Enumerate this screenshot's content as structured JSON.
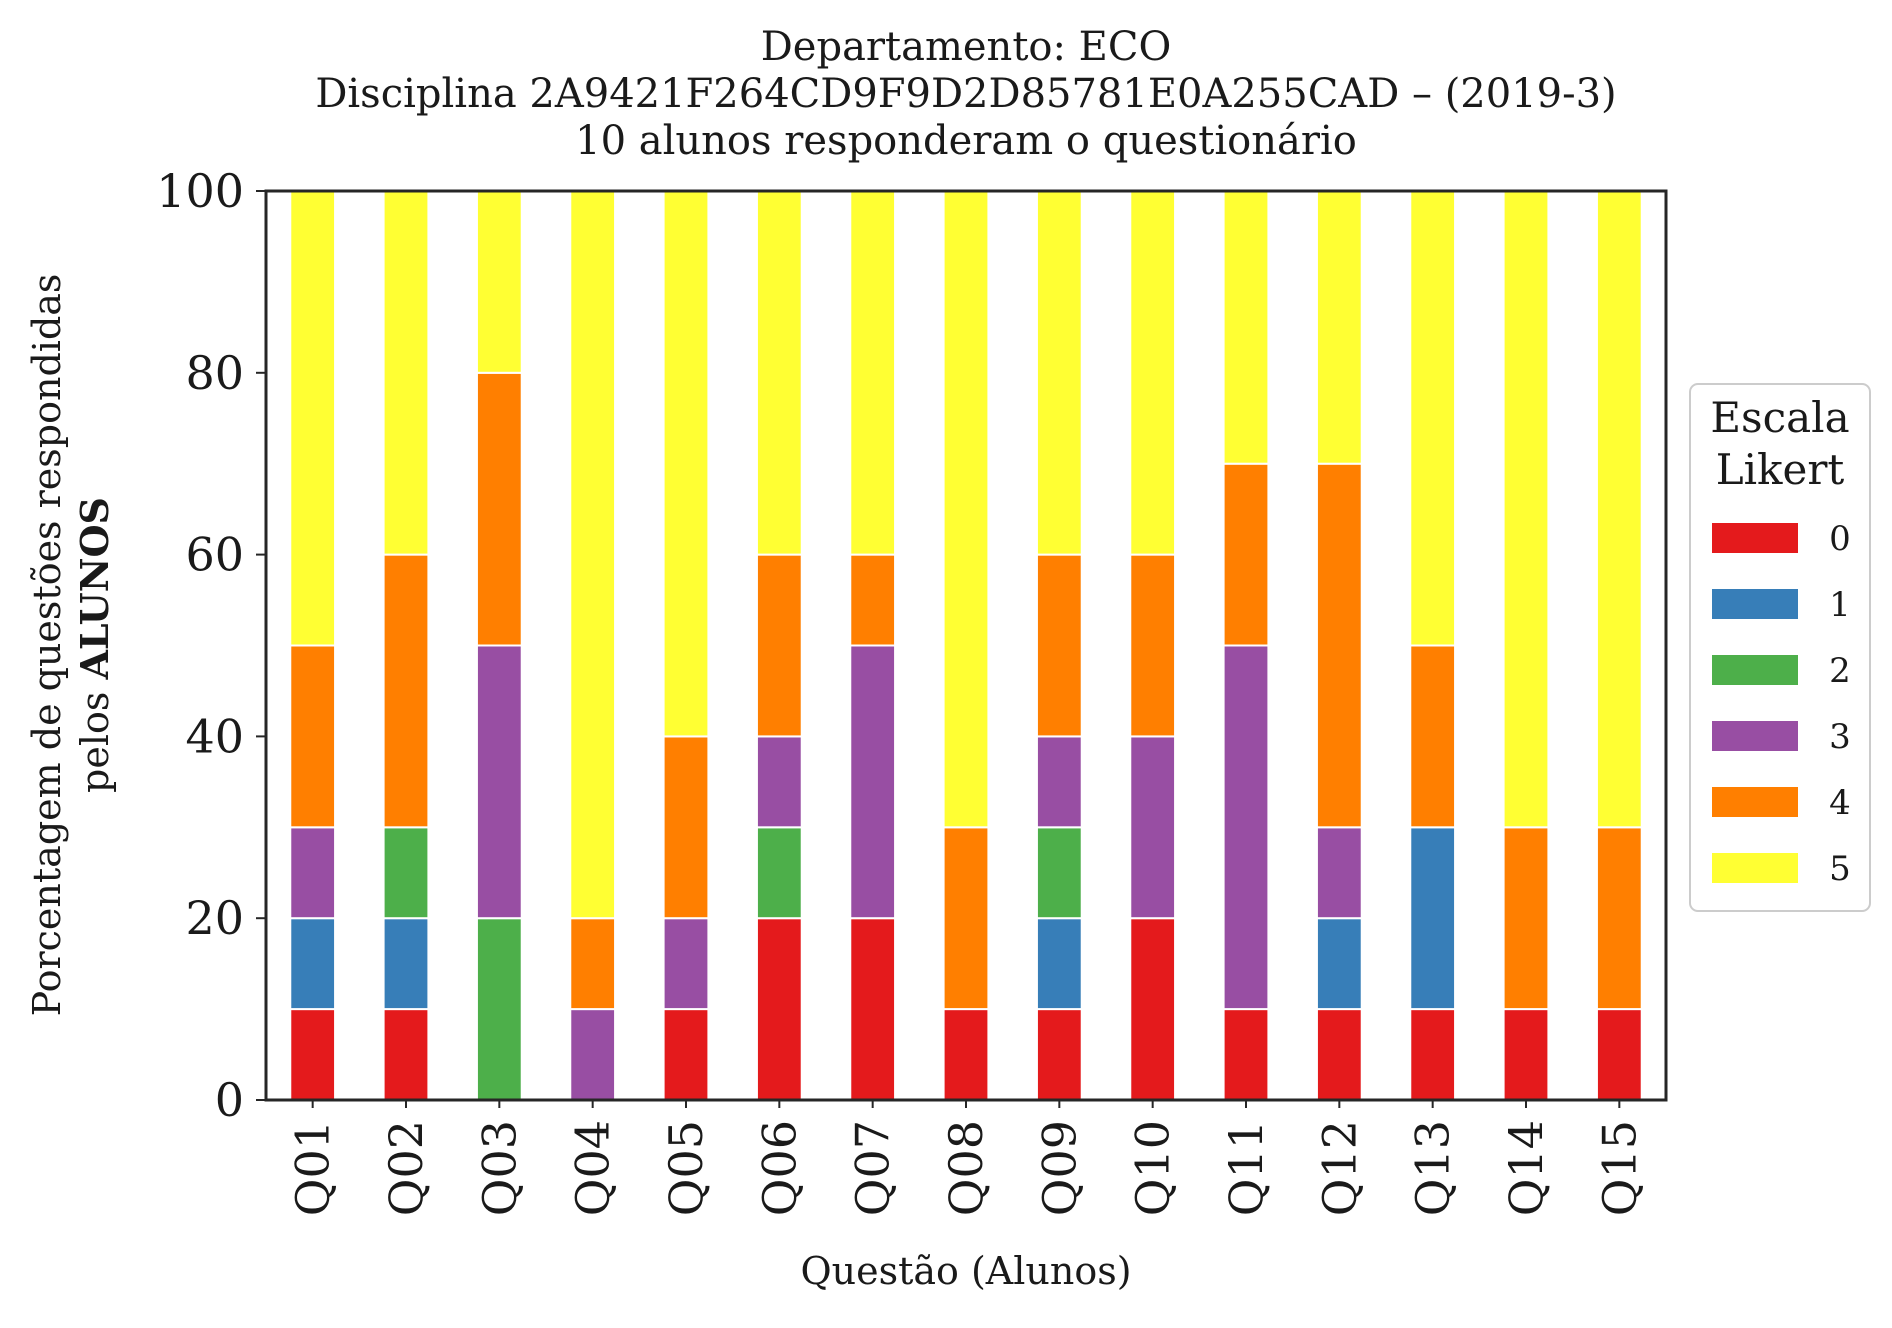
{
  "chart_data": {
    "type": "bar",
    "stacked": true,
    "title_lines": [
      "Departamento: ECO",
      "Disciplina 2A9421F264CD9F9D2D85781E0A255CAD – (2019-3)",
      "10 alunos responderam o questionário"
    ],
    "xlabel": "Questão (Alunos)",
    "ylabel_line1": "Porcentagem de questões respondidas",
    "ylabel_line2_prefix": "pelos ",
    "ylabel_line2_bold": "ALUNOS",
    "ylim": [
      0,
      100
    ],
    "yticks": [
      "0",
      "20",
      "40",
      "60",
      "80",
      "100"
    ],
    "grid": false,
    "legend": {
      "title_lines": [
        "Escala",
        "Likert"
      ],
      "placement": "center-right-outside"
    },
    "categories": [
      "Q01",
      "Q02",
      "Q03",
      "Q04",
      "Q05",
      "Q06",
      "Q07",
      "Q08",
      "Q09",
      "Q10",
      "Q11",
      "Q12",
      "Q13",
      "Q14",
      "Q15"
    ],
    "series": [
      {
        "name": "0",
        "color": "#e41a1c",
        "values": [
          10,
          10,
          0,
          0,
          10,
          20,
          20,
          10,
          10,
          20,
          10,
          10,
          10,
          10,
          10
        ]
      },
      {
        "name": "1",
        "color": "#377eb8",
        "values": [
          10,
          10,
          0,
          0,
          0,
          0,
          0,
          0,
          10,
          0,
          0,
          10,
          20,
          0,
          0
        ]
      },
      {
        "name": "2",
        "color": "#4daf4a",
        "values": [
          0,
          10,
          20,
          0,
          0,
          10,
          0,
          0,
          10,
          0,
          0,
          0,
          0,
          0,
          0
        ]
      },
      {
        "name": "3",
        "color": "#984ea3",
        "values": [
          10,
          0,
          30,
          10,
          10,
          10,
          30,
          0,
          10,
          20,
          40,
          10,
          0,
          0,
          0
        ]
      },
      {
        "name": "4",
        "color": "#ff7f00",
        "values": [
          20,
          30,
          30,
          10,
          20,
          20,
          10,
          20,
          20,
          20,
          20,
          40,
          20,
          20,
          20
        ]
      },
      {
        "name": "5",
        "color": "#ffff33",
        "values": [
          50,
          40,
          20,
          80,
          60,
          40,
          40,
          70,
          40,
          40,
          30,
          30,
          50,
          70,
          70
        ]
      }
    ]
  }
}
